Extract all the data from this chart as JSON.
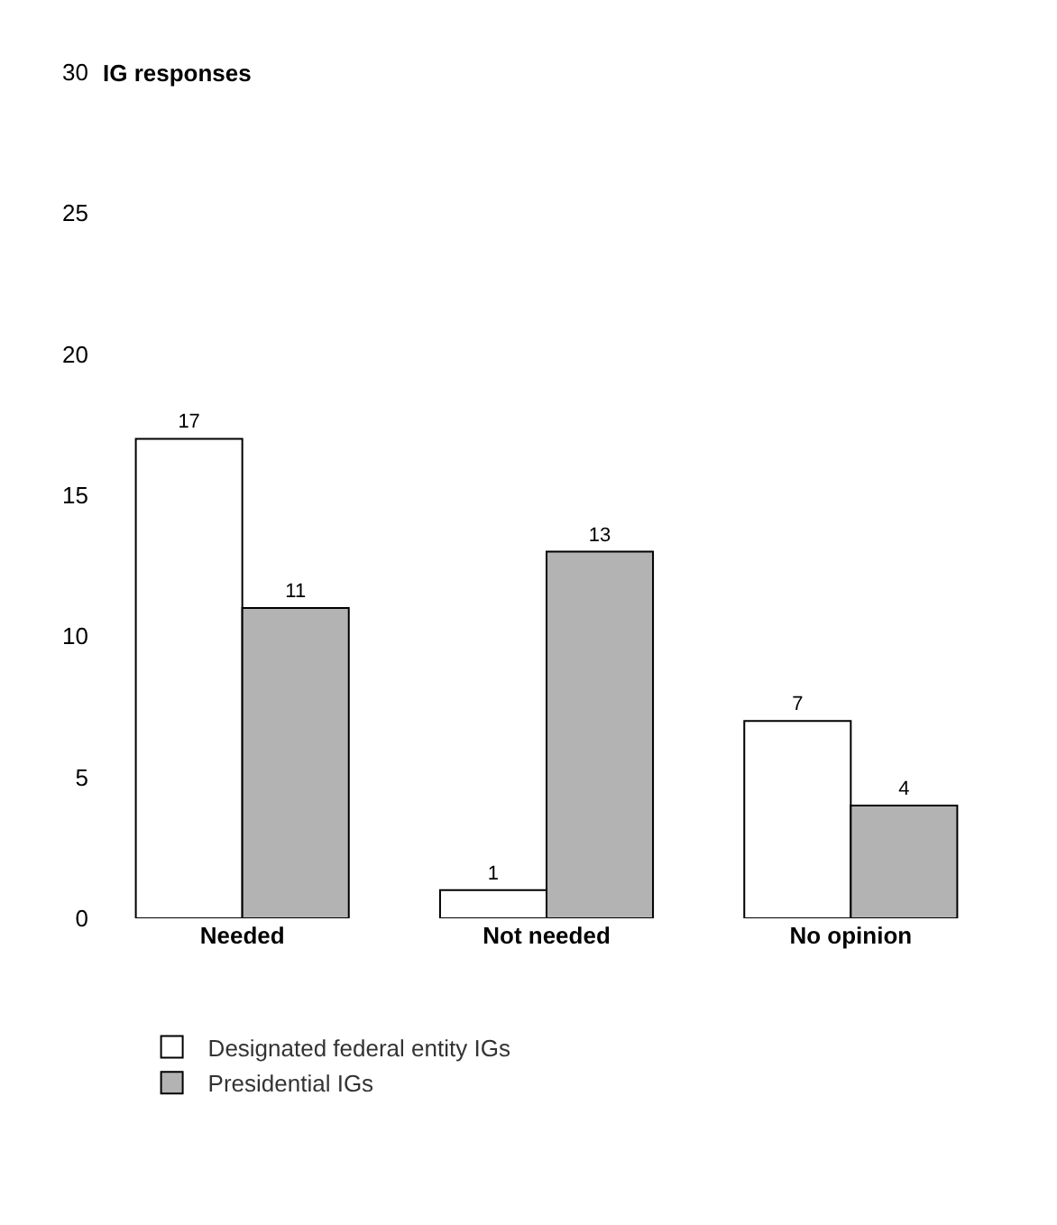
{
  "chart_data": {
    "type": "bar",
    "ylabel": "IG responses",
    "categories": [
      "Needed",
      "Not needed",
      "No opinion"
    ],
    "series": [
      {
        "name": "Designated federal entity IGs",
        "color": "#ffffff",
        "values": [
          17,
          1,
          7
        ]
      },
      {
        "name": "Presidential IGs",
        "color": "#b3b3b3",
        "values": [
          11,
          13,
          4
        ]
      }
    ],
    "ylim": [
      0,
      30
    ],
    "yticks": [
      0,
      5,
      10,
      15,
      20,
      25,
      30
    ],
    "legend": "bottom left",
    "data_labels": true
  }
}
